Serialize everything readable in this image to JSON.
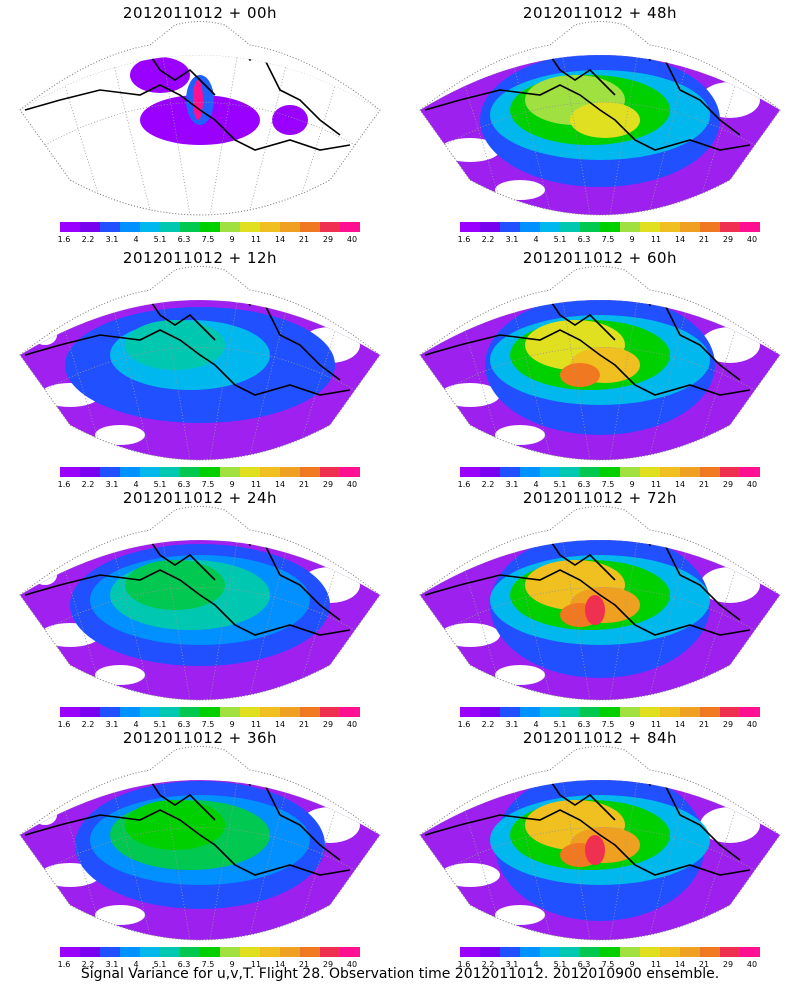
{
  "panels": [
    {
      "title": "2012011012 + 00h",
      "intensity": 0
    },
    {
      "title": "2012011012 + 48h",
      "intensity": 4
    },
    {
      "title": "2012011012 + 12h",
      "intensity": 1
    },
    {
      "title": "2012011012 + 60h",
      "intensity": 5
    },
    {
      "title": "2012011012 + 24h",
      "intensity": 2
    },
    {
      "title": "2012011012 + 72h",
      "intensity": 6
    },
    {
      "title": "2012011012 + 36h",
      "intensity": 3
    },
    {
      "title": "2012011012 + 84h",
      "intensity": 7
    }
  ],
  "colorbar": {
    "colors": [
      "#9900ff",
      "#7a00f0",
      "#2050ff",
      "#0090ff",
      "#00b8ee",
      "#00c8b0",
      "#00c850",
      "#00d000",
      "#a0e040",
      "#e0e020",
      "#f0c020",
      "#f0a020",
      "#f07820",
      "#f03050",
      "#ff1090"
    ],
    "labels": [
      "1.6",
      "2.2",
      "3.1",
      "4",
      "5.1",
      "6.3",
      "7.5",
      "9",
      "11",
      "14",
      "21",
      "29",
      "40"
    ]
  },
  "caption": "Signal Variance for u,v,T. Flight 28. Observation time 2012011012. 2012010900 ensemble."
}
